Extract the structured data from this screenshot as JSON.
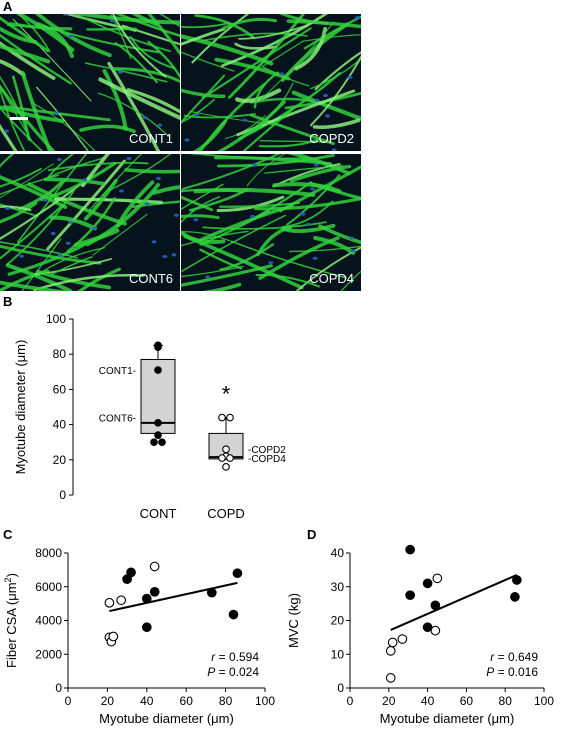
{
  "panels": {
    "a": "A",
    "b": "B",
    "c": "C",
    "d": "D"
  },
  "micrographs": [
    {
      "label": "CONT1",
      "seed": 3,
      "nuclei": 8
    },
    {
      "label": "COPD2",
      "seed": 11,
      "nuclei": 10
    },
    {
      "label": "CONT6",
      "seed": 17,
      "nuclei": 18
    },
    {
      "label": "COPD4",
      "seed": 23,
      "nuclei": 12
    }
  ],
  "micrograph_colors": {
    "background": "#06121c",
    "fiber": "#31d13c",
    "fiber_highlight": "#8af07a",
    "nuclei": "#2a5fc2",
    "label": "#ffffff"
  },
  "chart_data": [
    {
      "type": "box",
      "ylabel": "Myotube diameter (μm)",
      "ylim": [
        0,
        100
      ],
      "yticks": [
        0,
        20,
        40,
        60,
        80,
        100
      ],
      "categories": [
        "CONT",
        "COPD"
      ],
      "boxes": [
        {
          "category": "CONT",
          "q1": 35,
          "median": 41,
          "q3": 77,
          "whisker_low": 35,
          "whisker_high": 85,
          "points": [
            85,
            84,
            71,
            41,
            34,
            30,
            30
          ],
          "filled": true
        },
        {
          "category": "COPD",
          "q1": 20.5,
          "median": 21.5,
          "q3": 35,
          "whisker_low": 20.5,
          "whisker_high": 44,
          "points": [
            44,
            44,
            26,
            22,
            21,
            21,
            16
          ],
          "filled": false
        }
      ],
      "annotations": [
        {
          "text": "CONT1-",
          "y": 71,
          "side": "left",
          "category": "CONT"
        },
        {
          "text": "CONT6-",
          "y": 44,
          "side": "left",
          "category": "CONT"
        },
        {
          "text": "-COPD2",
          "y": 26,
          "side": "right",
          "category": "COPD"
        },
        {
          "text": "-COPD4",
          "y": 21,
          "side": "right",
          "category": "COPD"
        }
      ],
      "significance": {
        "text": "*",
        "category": "COPD",
        "y": 60
      }
    },
    {
      "type": "scatter",
      "xlabel": "Myotube diameter (μm)",
      "ylabel": "Fiber CSA (μm2)",
      "xlim": [
        0,
        100
      ],
      "ylim": [
        0,
        8000
      ],
      "xticks": [
        0,
        20,
        40,
        60,
        80,
        100
      ],
      "yticks": [
        0,
        2000,
        4000,
        6000,
        8000
      ],
      "series": [
        {
          "marker": "filled",
          "x": [
            30,
            32,
            40,
            40,
            44,
            73,
            84,
            86
          ],
          "y": [
            6450,
            6850,
            5300,
            3600,
            5700,
            5650,
            4350,
            6800
          ]
        },
        {
          "marker": "open",
          "x": [
            21,
            21,
            22,
            23,
            27,
            44
          ],
          "y": [
            5050,
            3000,
            2750,
            3050,
            5200,
            7200
          ]
        }
      ],
      "fit": {
        "x": [
          21,
          86
        ],
        "y": [
          4560,
          6230
        ]
      },
      "stats": {
        "r_label": "r",
        "r_value": " = 0.594",
        "p_label": "P",
        "p_value": " = 0.024"
      }
    },
    {
      "type": "scatter",
      "xlabel": "Myotube diameter (μm)",
      "ylabel": "MVC (kg)",
      "xlim": [
        0,
        100
      ],
      "ylim": [
        0,
        40
      ],
      "xticks": [
        0,
        20,
        40,
        60,
        80,
        100
      ],
      "yticks": [
        0,
        10,
        20,
        30,
        40
      ],
      "series": [
        {
          "marker": "filled",
          "x": [
            31,
            31,
            40,
            40,
            44,
            85,
            86
          ],
          "y": [
            41,
            27.5,
            31,
            18,
            24.5,
            27,
            32
          ]
        },
        {
          "marker": "open",
          "x": [
            21,
            21,
            22,
            27,
            44,
            45
          ],
          "y": [
            3,
            11,
            13.5,
            14.5,
            17,
            32.5
          ]
        }
      ],
      "fit": {
        "x": [
          21,
          86
        ],
        "y": [
          17.2,
          33.5
        ]
      },
      "stats": {
        "r_label": "r",
        "r_value": " = 0.649",
        "p_label": "P",
        "p_value": " = 0.016"
      }
    }
  ]
}
